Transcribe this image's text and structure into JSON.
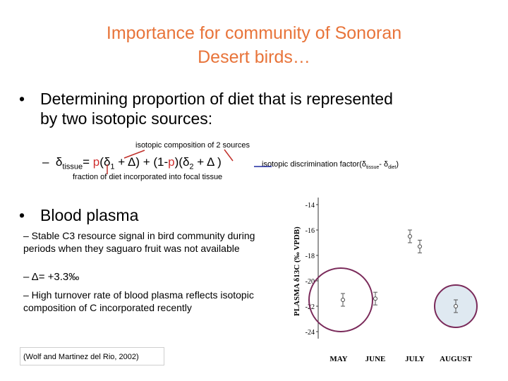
{
  "slide": {
    "title_line1": "Importance for community of Sonoran",
    "title_line2": "Desert birds…",
    "bullets": [
      {
        "symbol": "•",
        "text": "Determining proportion of diet that is represented by two isotopic sources:"
      },
      {
        "symbol": "•",
        "text": "Blood plasma"
      }
    ],
    "equation": {
      "dash": "–",
      "delta": "δ",
      "tissue_sub": "tissue",
      "eq_sign": "= ",
      "p": "p",
      "paren_open": "(",
      "s1": "1",
      "plus_Delta_1": " + Δ) + (1-",
      "p2": "p",
      "paren2": ")(",
      "s2": "2",
      "plus_Delta_2": " + Δ )"
    },
    "annotations": {
      "top": "isotopic composition of 2 sources",
      "right_prefix": "isotopic discrimination factor(δ",
      "right_sub1": "tissue",
      "right_mid": "- δ",
      "right_sub2": "diet",
      "right_suffix": ")",
      "bottom": "fraction of diet incorporated into focal tissue"
    },
    "sub_items": [
      "– Stable C3 resource signal in bird community during periods when they saguaro fruit was not available",
      "– Δ= +3.3‰",
      "– High turnover rate of blood plasma reflects isotopic composition of C incorporated recently"
    ],
    "citation": "(Wolf and Martinez del Rio, 2002)"
  },
  "chart_data": {
    "type": "scatter",
    "ylabel": "PLASMA δ13C (‰ VPDB)",
    "yticks": [
      "-14",
      "-16",
      "-18",
      "-20",
      "-22",
      "-24"
    ],
    "ylim": [
      -25,
      -13.5
    ],
    "categories": [
      "MAY",
      "JUNE",
      "JULY",
      "AUGUST"
    ],
    "series": [
      {
        "points": [
          {
            "x": "MAY",
            "y": -21.5
          },
          {
            "x": "JUNE",
            "y": -21.4
          },
          {
            "x": "JULY",
            "y": -16.5
          },
          {
            "x": "JULY",
            "y": -17.3
          },
          {
            "x": "AUGUST",
            "y": -22.0
          }
        ]
      }
    ],
    "highlight_circle_color": "#7a2a5a"
  }
}
